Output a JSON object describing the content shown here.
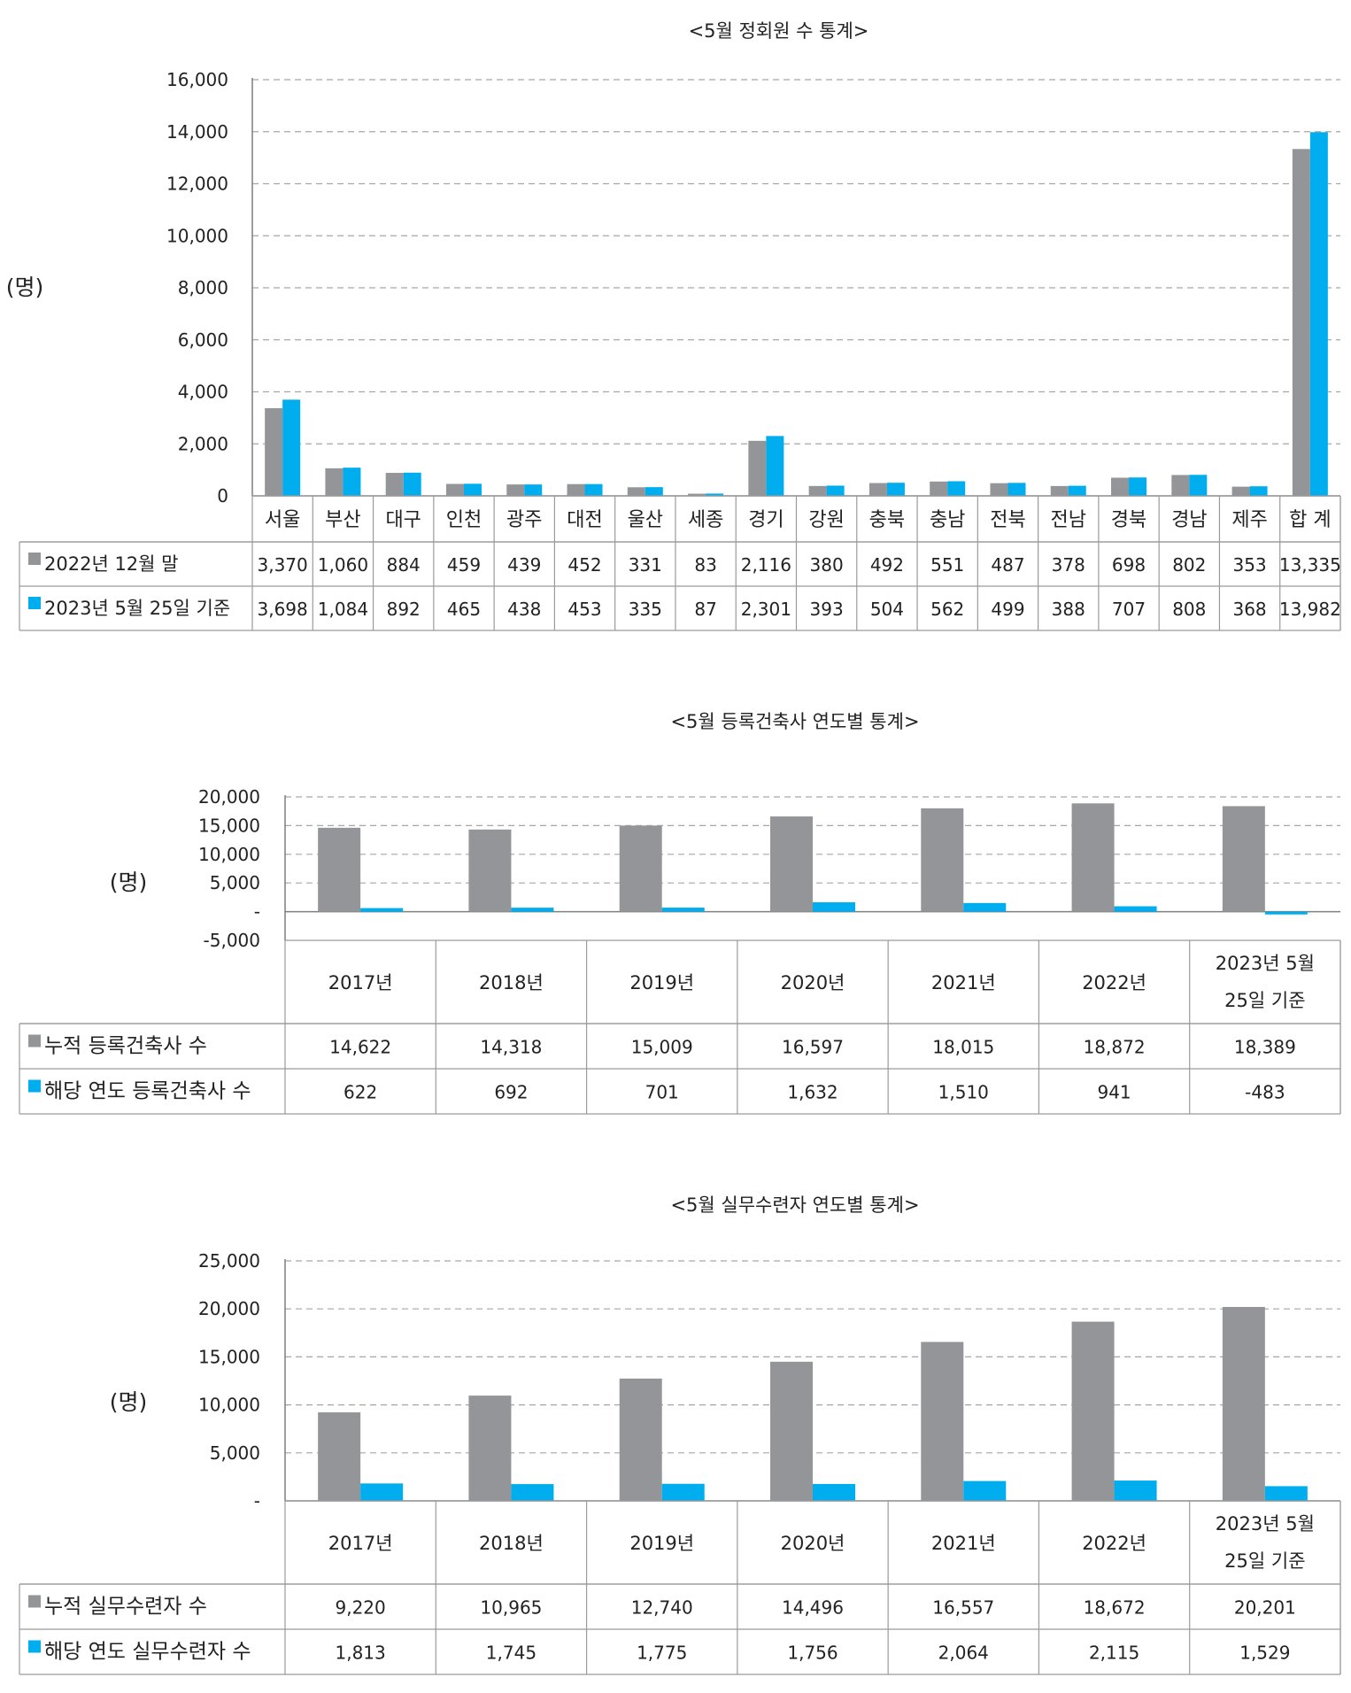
{
  "colors": {
    "series1": "#939598",
    "series2": "#00AEEF",
    "grid": "#a6a6a6",
    "axis": "#7f7f7f",
    "table_border": "#9a9a9a",
    "text": "#222222"
  },
  "chart_data": [
    {
      "type": "bar",
      "title": "<5월 정회원 수 통계>",
      "ylabel": "(명)",
      "ylim": [
        0,
        16000
      ],
      "yticks": [
        "0",
        "2,000",
        "4,000",
        "6,000",
        "8,000",
        "10,000",
        "12,000",
        "14,000",
        "16,000"
      ],
      "grid": true,
      "categories": [
        "서울",
        "부산",
        "대구",
        "인천",
        "광주",
        "대전",
        "울산",
        "세종",
        "경기",
        "강원",
        "충북",
        "충남",
        "전북",
        "전남",
        "경북",
        "경남",
        "제주",
        "합 계"
      ],
      "series": [
        {
          "name": "2022년 12월 말",
          "values": [
            3370,
            1060,
            884,
            459,
            439,
            452,
            331,
            83,
            2116,
            380,
            492,
            551,
            487,
            378,
            698,
            802,
            353,
            13335
          ],
          "labels": [
            "3,370",
            "1,060",
            "884",
            "459",
            "439",
            "452",
            "331",
            "83",
            "2,116",
            "380",
            "492",
            "551",
            "487",
            "378",
            "698",
            "802",
            "353",
            "13,335"
          ]
        },
        {
          "name": "2023년 5월 25일 기준",
          "values": [
            3698,
            1084,
            892,
            465,
            438,
            453,
            335,
            87,
            2301,
            393,
            504,
            562,
            499,
            388,
            707,
            808,
            368,
            13982
          ],
          "labels": [
            "3,698",
            "1,084",
            "892",
            "465",
            "438",
            "453",
            "335",
            "87",
            "2,301",
            "393",
            "504",
            "562",
            "499",
            "388",
            "707",
            "808",
            "368",
            "13,982"
          ]
        }
      ]
    },
    {
      "type": "bar",
      "title": "<5월 등록건축사 연도별 통계>",
      "ylabel": "(명)",
      "ylim": [
        -5000,
        20000
      ],
      "yticks": [
        "-5,000",
        "-",
        "5,000",
        "10,000",
        "15,000",
        "20,000"
      ],
      "grid": true,
      "categories": [
        "2017년",
        "2018년",
        "2019년",
        "2020년",
        "2021년",
        "2022년",
        "2023년 5월 25일 기준"
      ],
      "series": [
        {
          "name": "누적 등록건축사 수",
          "values": [
            14622,
            14318,
            15009,
            16597,
            18015,
            18872,
            18389
          ],
          "labels": [
            "14,622",
            "14,318",
            "15,009",
            "16,597",
            "18,015",
            "18,872",
            "18,389"
          ]
        },
        {
          "name": "해당 연도 등록건축사 수",
          "values": [
            622,
            692,
            701,
            1632,
            1510,
            941,
            -483
          ],
          "labels": [
            "622",
            "692",
            "701",
            "1,632",
            "1,510",
            "941",
            "-483"
          ]
        }
      ]
    },
    {
      "type": "bar",
      "title": "<5월 실무수련자 연도별 통계>",
      "ylabel": "(명)",
      "ylim": [
        0,
        25000
      ],
      "yticks": [
        "-",
        "5,000",
        "10,000",
        "15,000",
        "20,000",
        "25,000"
      ],
      "grid": true,
      "categories": [
        "2017년",
        "2018년",
        "2019년",
        "2020년",
        "2021년",
        "2022년",
        "2023년 5월 25일 기준"
      ],
      "series": [
        {
          "name": "누적 실무수련자 수",
          "values": [
            9220,
            10965,
            12740,
            14496,
            16557,
            18672,
            20201
          ],
          "labels": [
            "9,220",
            "10,965",
            "12,740",
            "14,496",
            "16,557",
            "18,672",
            "20,201"
          ]
        },
        {
          "name": "해당 연도 실무수련자 수",
          "values": [
            1813,
            1745,
            1775,
            1756,
            2064,
            2115,
            1529
          ],
          "labels": [
            "1,813",
            "1,745",
            "1,775",
            "1,756",
            "2,064",
            "2,115",
            "1,529"
          ]
        }
      ]
    }
  ]
}
